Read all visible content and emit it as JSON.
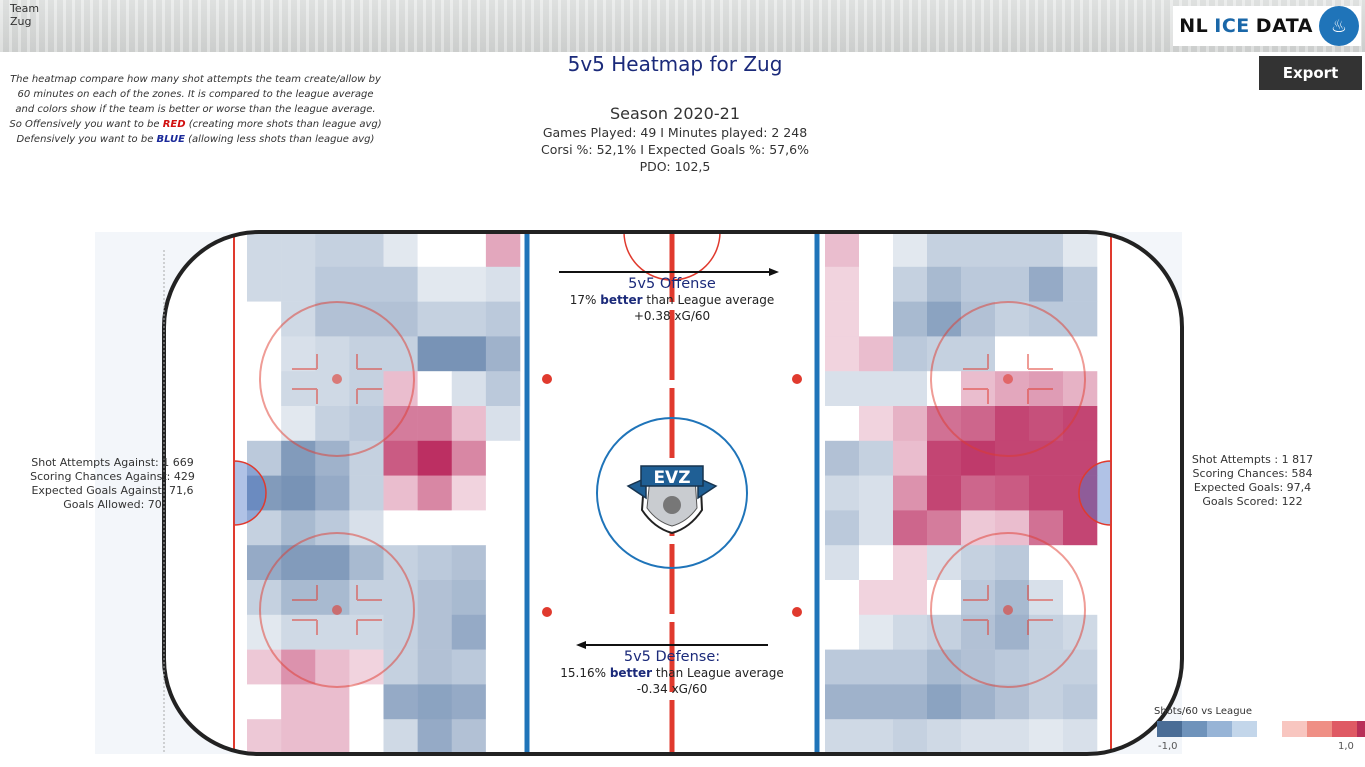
{
  "header": {
    "team_label": "Team\nZug",
    "logo_text_nl": "NL",
    "logo_text_ice": "ICE",
    "logo_text_data": "DATA",
    "title": "5v5 Heatmap for Zug",
    "export_label": "Export"
  },
  "explanation": {
    "line1": "The heatmap compare how many shot attempts the team create/allow by 60 minutes on each of the zones. It is compared to the league average and colors show if the team is better or worse than the league average.",
    "line2_a": "So Offensively you want to be ",
    "line2_red": "RED",
    "line2_b": "  (creating more shots than  league avg)",
    "line3_a": "Defensively you want to be ",
    "line3_blue": "BLUE",
    "line3_b": "  (allowing less shots than  league avg)"
  },
  "season": {
    "title": "Season 2020-21",
    "games_minutes": "Games Played: 49 I Minutes played: 2 248",
    "corsi_xg": "Corsi %: 52,1% I Expected Goals %: 57,6%",
    "pdo": "PDO: 102,5"
  },
  "defense_stats": {
    "shot_attempts": "Shot Attempts Against: 1 669",
    "scoring_chances": "Scoring Chances Against: 429",
    "expected_goals": "Expected Goals Against: 71,6",
    "goals": "Goals Allowed: 70"
  },
  "offense_stats": {
    "shot_attempts": "Shot Attempts : 1 817",
    "scoring_chances": "Scoring Chances: 584",
    "expected_goals": "Expected Goals: 97,4",
    "goals": "Goals Scored: 122"
  },
  "offense_annotation": {
    "heading": "5v5 Offense",
    "pct": "17%",
    "better": "better",
    "rest": " than League average",
    "xg": "+0.38 xG/60"
  },
  "defense_annotation": {
    "heading": "5v5 Defense:",
    "pct": "15.16%",
    "better": "better",
    "rest": " than League average",
    "xg": "-0.34 xG/60"
  },
  "legend": {
    "title": "Shots/60 vs League",
    "min_label": "-1,0",
    "max_label": "1,0",
    "colors": [
      "#4a6d96",
      "#6f93bb",
      "#97b4d6",
      "#c3d6ea",
      "#ffffff",
      "#f8c6c0",
      "#ef8f85",
      "#df5a64",
      "#b83058"
    ]
  },
  "colors": {
    "blue_line": "#1f74b9",
    "red_line": "#e03a2e",
    "title_navy": "#1b2a7a"
  },
  "chart_data": [
    {
      "type": "heatmap",
      "name": "defensive zone",
      "rows": 15,
      "cols": 8,
      "values": [
        [
          -0.25,
          -0.25,
          -0.3,
          -0.3,
          -0.15,
          0,
          0,
          0.4
        ],
        [
          -0.25,
          -0.25,
          -0.35,
          -0.35,
          -0.35,
          -0.15,
          -0.15,
          -0.2
        ],
        [
          0,
          -0.25,
          -0.4,
          -0.4,
          -0.4,
          -0.3,
          -0.3,
          -0.35
        ],
        [
          0,
          -0.2,
          -0.25,
          -0.3,
          -0.3,
          -0.7,
          -0.7,
          -0.5
        ],
        [
          0,
          -0.25,
          -0.25,
          -0.3,
          0.3,
          0,
          -0.2,
          -0.35
        ],
        [
          0,
          -0.15,
          -0.3,
          -0.35,
          0.6,
          0.6,
          0.3,
          -0.2
        ],
        [
          -0.35,
          -0.65,
          -0.5,
          -0.3,
          0.75,
          0.95,
          0.55,
          0
        ],
        [
          -0.65,
          -0.7,
          -0.55,
          -0.3,
          0.3,
          0.55,
          0.2,
          0
        ],
        [
          -0.3,
          -0.45,
          -0.35,
          -0.2,
          0,
          0,
          0,
          0
        ],
        [
          -0.55,
          -0.65,
          -0.65,
          -0.45,
          -0.3,
          -0.35,
          -0.4,
          0
        ],
        [
          -0.3,
          -0.45,
          -0.45,
          -0.3,
          -0.3,
          -0.4,
          -0.45,
          0
        ],
        [
          -0.15,
          -0.25,
          -0.25,
          -0.25,
          -0.3,
          -0.4,
          -0.55,
          0
        ],
        [
          0.25,
          0.5,
          0.3,
          0.2,
          -0.3,
          -0.4,
          -0.35,
          0
        ],
        [
          0,
          0.3,
          0.3,
          0,
          -0.55,
          -0.6,
          -0.55,
          0
        ],
        [
          0.25,
          0.3,
          0.3,
          0,
          -0.25,
          -0.55,
          -0.4,
          0
        ]
      ]
    },
    {
      "type": "heatmap",
      "name": "offensive zone",
      "rows": 15,
      "cols": 8,
      "values": [
        [
          0.3,
          0,
          -0.15,
          -0.3,
          -0.3,
          -0.3,
          -0.3,
          -0.15
        ],
        [
          0.2,
          0,
          -0.3,
          -0.45,
          -0.35,
          -0.35,
          -0.55,
          -0.35
        ],
        [
          0.2,
          0,
          -0.45,
          -0.6,
          -0.4,
          -0.3,
          -0.35,
          -0.35
        ],
        [
          0.2,
          0.3,
          -0.35,
          -0.3,
          -0.3,
          0,
          0,
          0
        ],
        [
          -0.2,
          -0.2,
          -0.2,
          0,
          0.3,
          0.4,
          0.45,
          0.35
        ],
        [
          0,
          0.2,
          0.35,
          0.65,
          0.7,
          0.85,
          0.8,
          0.85
        ],
        [
          -0.4,
          -0.3,
          0.3,
          0.85,
          0.9,
          0.85,
          0.85,
          0.85
        ],
        [
          -0.25,
          -0.2,
          0.5,
          0.85,
          0.7,
          0.75,
          0.85,
          0.85
        ],
        [
          -0.35,
          -0.2,
          0.7,
          0.6,
          0.25,
          0.3,
          0.65,
          0.85
        ],
        [
          -0.2,
          0,
          0.2,
          -0.2,
          -0.3,
          -0.35,
          0,
          0
        ],
        [
          0,
          0.2,
          0.2,
          0,
          -0.35,
          -0.45,
          -0.2,
          0
        ],
        [
          0,
          -0.15,
          -0.25,
          -0.3,
          -0.4,
          -0.5,
          -0.3,
          -0.25
        ],
        [
          -0.35,
          -0.35,
          -0.35,
          -0.45,
          -0.4,
          -0.35,
          -0.3,
          -0.3
        ],
        [
          -0.5,
          -0.5,
          -0.5,
          -0.6,
          -0.5,
          -0.4,
          -0.3,
          -0.35
        ],
        [
          -0.25,
          -0.25,
          -0.3,
          -0.25,
          -0.2,
          -0.2,
          -0.15,
          -0.2
        ]
      ]
    }
  ]
}
